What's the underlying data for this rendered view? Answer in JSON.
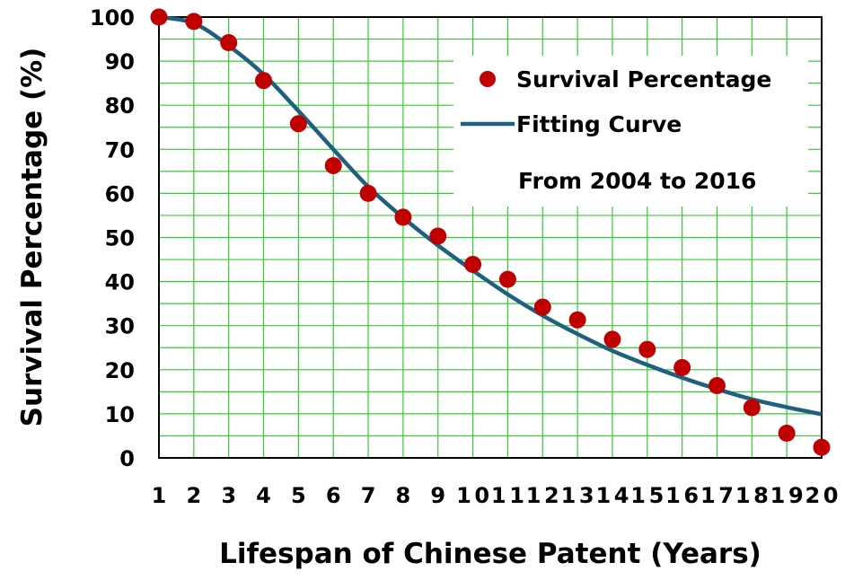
{
  "chart_data": {
    "type": "scatter",
    "xlabel": "Lifespan of Chinese Patent (Years)",
    "ylabel": "Survival Percentage (%)",
    "annotation": "From 2004 to 2016",
    "xlim": [
      1,
      20
    ],
    "ylim": [
      0,
      100
    ],
    "x_ticks": [
      "1",
      "2",
      "3",
      "4",
      "5",
      "6",
      "7",
      "8",
      "9",
      "10",
      "11",
      "12",
      "13",
      "14",
      "15",
      "16",
      "17",
      "18",
      "19",
      "20"
    ],
    "y_ticks": [
      "0",
      "10",
      "20",
      "30",
      "40",
      "50",
      "60",
      "70",
      "80",
      "90",
      "100"
    ],
    "grid": true,
    "legend_position": "top-right",
    "colors": {
      "points": "#c00000",
      "curve": "#1f6080",
      "grid": "#33cc33"
    },
    "series": [
      {
        "name": "Survival Percentage",
        "kind": "scatter",
        "x": [
          1,
          2,
          3,
          4,
          5,
          6,
          7,
          8,
          9,
          10,
          11,
          12,
          13,
          14,
          15,
          16,
          17,
          18,
          19,
          20
        ],
        "y": [
          100,
          99,
          94.2,
          85.6,
          75.8,
          66.3,
          60,
          54.6,
          50.3,
          43.9,
          40.5,
          34.2,
          31.3,
          26.9,
          24.6,
          20.5,
          16.4,
          11.4,
          5.6,
          2.4
        ]
      },
      {
        "name": "Fitting Curve",
        "kind": "line",
        "x": [
          1,
          2,
          3,
          4,
          5,
          6,
          7,
          8,
          9,
          10,
          11,
          12,
          13,
          14,
          15,
          16,
          17,
          18,
          19,
          20
        ],
        "y": [
          100,
          98.6,
          93.5,
          87,
          78.7,
          70,
          61.5,
          54.5,
          48.2,
          42.5,
          37.1,
          32.3,
          28.1,
          24.3,
          21.1,
          18.2,
          15.6,
          13.3,
          11.5,
          9.9
        ]
      }
    ]
  }
}
